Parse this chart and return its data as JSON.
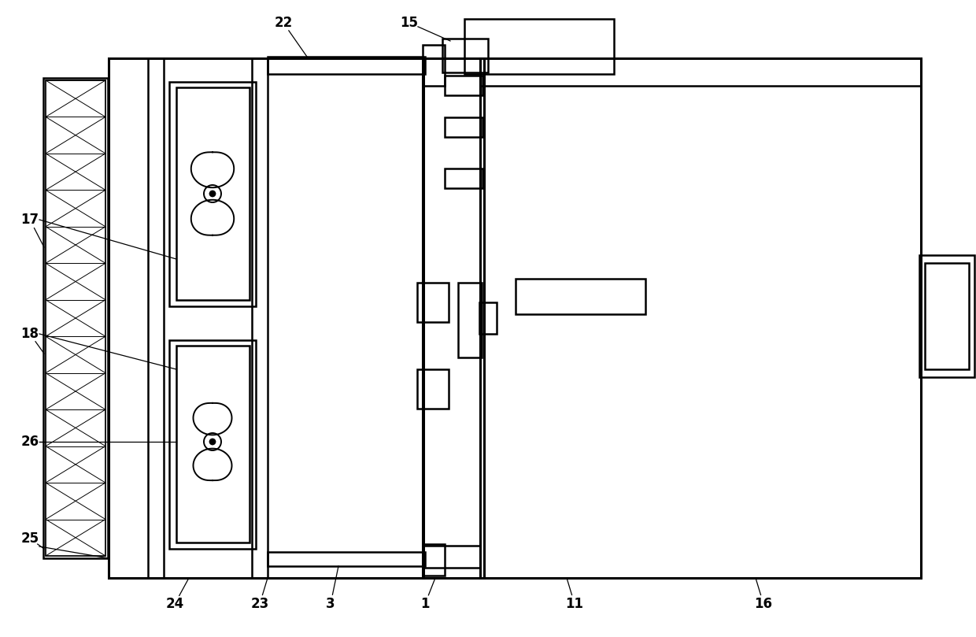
{
  "bg_color": "#ffffff",
  "lc": "#000000",
  "lw": 1.8,
  "tlw": 2.2,
  "fig_width": 12.4,
  "fig_height": 8.09,
  "dpi": 100
}
